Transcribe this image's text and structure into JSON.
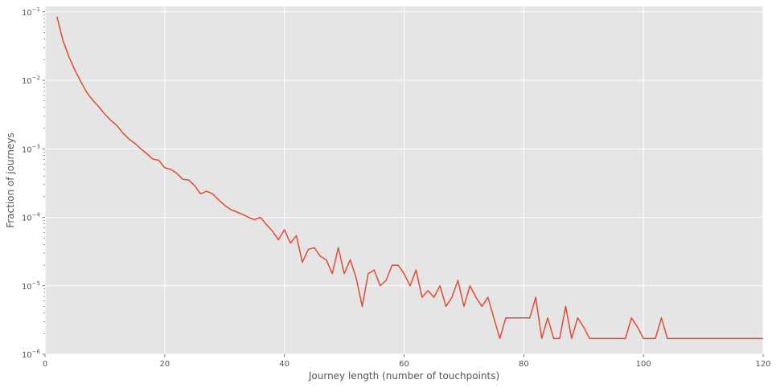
{
  "chart_data": {
    "type": "line",
    "title": "",
    "xlabel": "Journey length (number of touchpoints)",
    "ylabel": "Fraction of journeys",
    "xlim": [
      0,
      120
    ],
    "ylim": [
      1e-06,
      0.12
    ],
    "yscale": "log",
    "grid": true,
    "legend": "none",
    "colors": {
      "background": "#e5e5e5",
      "grid": "#ffffff",
      "line": "#e24a33",
      "text": "#555555"
    },
    "xticks": [
      {
        "value": 0,
        "label": "0"
      },
      {
        "value": 20,
        "label": "20"
      },
      {
        "value": 40,
        "label": "40"
      },
      {
        "value": 60,
        "label": "60"
      },
      {
        "value": 80,
        "label": "80"
      },
      {
        "value": 100,
        "label": "100"
      },
      {
        "value": 120,
        "label": "120"
      }
    ],
    "yticks": [
      {
        "value": 1e-06,
        "base": "10",
        "exp": "−6"
      },
      {
        "value": 1e-05,
        "base": "10",
        "exp": "−5"
      },
      {
        "value": 0.0001,
        "base": "10",
        "exp": "−4"
      },
      {
        "value": 0.001,
        "base": "10",
        "exp": "−3"
      },
      {
        "value": 0.01,
        "base": "10",
        "exp": "−2"
      },
      {
        "value": 0.1,
        "base": "10",
        "exp": "−1"
      }
    ],
    "series": [
      {
        "x": [
          2,
          3,
          4,
          5,
          6,
          7,
          8,
          9,
          10,
          11,
          12,
          13,
          14,
          15,
          16,
          17,
          18,
          19,
          20,
          21,
          22,
          23,
          24,
          25,
          26,
          27,
          28,
          29,
          30,
          31,
          32,
          33,
          34,
          35,
          36,
          37,
          38,
          39,
          40,
          41,
          42,
          43,
          44,
          45,
          46,
          47,
          48,
          49,
          50,
          51,
          52,
          53,
          54,
          55,
          56,
          57,
          58,
          59,
          60,
          61,
          62,
          63,
          64,
          65,
          66,
          67,
          68,
          69,
          70,
          71,
          72,
          73,
          74,
          75,
          76,
          77,
          78,
          79,
          80,
          81,
          82,
          83,
          84,
          85,
          86,
          87,
          88,
          89,
          90,
          91,
          92,
          93,
          94,
          95,
          96,
          97,
          98,
          99,
          100,
          101,
          102,
          103,
          104,
          105,
          106,
          107,
          108,
          109,
          110,
          111,
          112,
          113,
          114,
          115,
          116,
          117,
          118,
          119,
          120
        ],
        "y": [
          0.085,
          0.038,
          0.022,
          0.014,
          0.0095,
          0.0066,
          0.0051,
          0.0041,
          0.0032,
          0.0026,
          0.0022,
          0.0017,
          0.0014,
          0.0012,
          0.001,
          0.00085,
          0.00071,
          0.00068,
          0.00053,
          0.0005,
          0.00044,
          0.00036,
          0.00035,
          0.00029,
          0.00022,
          0.00024,
          0.00022,
          0.00018,
          0.00015,
          0.00013,
          0.00012,
          0.00011,
          0.0001,
          9.2e-05,
          0.0001,
          7.8e-05,
          6.3e-05,
          4.7e-05,
          6.6e-05,
          4.2e-05,
          5.4e-05,
          2.2e-05,
          3.4e-05,
          3.6e-05,
          2.7e-05,
          2.4e-05,
          1.5e-05,
          3.6e-05,
          1.5e-05,
          2.4e-05,
          1.3e-05,
          5e-06,
          1.5e-05,
          1.7e-05,
          1e-05,
          1.2e-05,
          2e-05,
          2e-05,
          1.5e-05,
          1e-05,
          1.7e-05,
          6.8e-06,
          8.5e-06,
          6.8e-06,
          1e-05,
          5e-06,
          6.8e-06,
          1.2e-05,
          5e-06,
          1e-05,
          6.8e-06,
          5e-06,
          6.8e-06,
          3.4e-06,
          1.7e-06,
          3.4e-06,
          3.4e-06,
          3.4e-06,
          3.4e-06,
          3.4e-06,
          6.8e-06,
          1.7e-06,
          3.4e-06,
          1.7e-06,
          1.7e-06,
          5e-06,
          1.7e-06,
          3.4e-06,
          2.5e-06,
          1.7e-06,
          1.7e-06,
          1.7e-06,
          1.7e-06,
          1.7e-06,
          1.7e-06,
          1.7e-06,
          3.4e-06,
          2.5e-06,
          1.7e-06,
          1.7e-06,
          1.7e-06,
          3.4e-06,
          1.7e-06,
          1.7e-06,
          1.7e-06,
          1.7e-06,
          1.7e-06,
          1.7e-06,
          1.7e-06,
          1.7e-06,
          1.7e-06,
          1.7e-06,
          1.7e-06,
          1.7e-06,
          1.7e-06,
          1.7e-06,
          1.7e-06,
          1.7e-06,
          1.7e-06
        ]
      }
    ]
  }
}
